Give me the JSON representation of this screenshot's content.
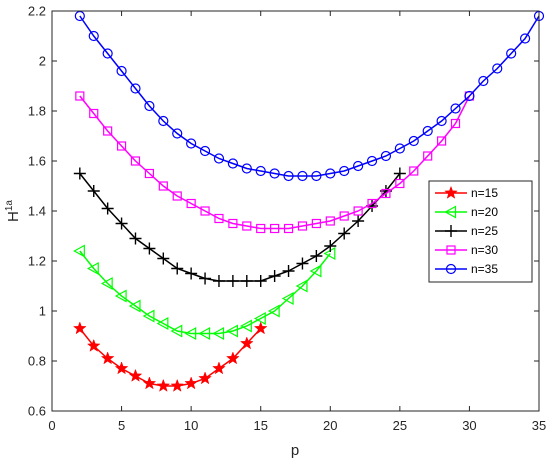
{
  "chart_data": {
    "type": "line",
    "xlabel": "p",
    "ylabel": "H",
    "ylabel_sup": "1a",
    "xlim": [
      0,
      35
    ],
    "ylim": [
      0.6,
      2.2
    ],
    "xticks": [
      0,
      5,
      10,
      15,
      20,
      25,
      30,
      35
    ],
    "yticks": [
      0.6,
      0.8,
      1,
      1.2,
      1.4,
      1.6,
      1.8,
      2,
      2.2
    ],
    "xtick_labels": [
      "0",
      "5",
      "10",
      "15",
      "20",
      "25",
      "30",
      "35"
    ],
    "ytick_labels": [
      "0.6",
      "0.8",
      "1",
      "1.2",
      "1.4",
      "1.6",
      "1.8",
      "2",
      "2.2"
    ],
    "grid": false,
    "legend_position": "right",
    "series": [
      {
        "name": "n=15",
        "color": "#ff0000",
        "marker": "star",
        "x": [
          2,
          3,
          4,
          5,
          6,
          7,
          8,
          9,
          10,
          11,
          12,
          13,
          14,
          15
        ],
        "y": [
          0.93,
          0.86,
          0.81,
          0.77,
          0.74,
          0.71,
          0.7,
          0.7,
          0.71,
          0.73,
          0.77,
          0.81,
          0.87,
          0.93
        ]
      },
      {
        "name": "n=20",
        "color": "#00ff00",
        "marker": "triangle-left",
        "x": [
          2,
          3,
          4,
          5,
          6,
          7,
          8,
          9,
          10,
          11,
          12,
          13,
          14,
          15,
          16,
          17,
          18,
          19,
          20
        ],
        "y": [
          1.24,
          1.17,
          1.11,
          1.06,
          1.02,
          0.98,
          0.95,
          0.92,
          0.91,
          0.91,
          0.91,
          0.92,
          0.94,
          0.97,
          1.0,
          1.05,
          1.1,
          1.16,
          1.23
        ]
      },
      {
        "name": "n=25",
        "color": "#000000",
        "marker": "plus",
        "x": [
          2,
          3,
          4,
          5,
          6,
          7,
          8,
          9,
          10,
          11,
          12,
          13,
          14,
          15,
          16,
          17,
          18,
          19,
          20,
          21,
          22,
          23,
          24,
          25
        ],
        "y": [
          1.55,
          1.48,
          1.41,
          1.35,
          1.29,
          1.25,
          1.21,
          1.17,
          1.15,
          1.13,
          1.12,
          1.12,
          1.12,
          1.12,
          1.14,
          1.16,
          1.19,
          1.22,
          1.26,
          1.31,
          1.36,
          1.42,
          1.48,
          1.55
        ]
      },
      {
        "name": "n=30",
        "color": "#ff00ff",
        "marker": "square",
        "x": [
          2,
          3,
          4,
          5,
          6,
          7,
          8,
          9,
          10,
          11,
          12,
          13,
          14,
          15,
          16,
          17,
          18,
          19,
          20,
          21,
          22,
          23,
          24,
          25,
          26,
          27,
          28,
          29,
          30
        ],
        "y": [
          1.86,
          1.79,
          1.72,
          1.66,
          1.6,
          1.55,
          1.5,
          1.46,
          1.43,
          1.4,
          1.37,
          1.35,
          1.34,
          1.33,
          1.33,
          1.33,
          1.34,
          1.35,
          1.36,
          1.38,
          1.4,
          1.43,
          1.47,
          1.51,
          1.56,
          1.62,
          1.68,
          1.75,
          1.86
        ]
      },
      {
        "name": "n=35",
        "color": "#0000ff",
        "marker": "circle",
        "x": [
          2,
          3,
          4,
          5,
          6,
          7,
          8,
          9,
          10,
          11,
          12,
          13,
          14,
          15,
          16,
          17,
          18,
          19,
          20,
          21,
          22,
          23,
          24,
          25,
          26,
          27,
          28,
          29,
          30,
          31,
          32,
          33,
          34,
          35
        ],
        "y": [
          2.18,
          2.1,
          2.03,
          1.96,
          1.89,
          1.82,
          1.76,
          1.71,
          1.67,
          1.64,
          1.61,
          1.59,
          1.57,
          1.56,
          1.55,
          1.54,
          1.54,
          1.54,
          1.55,
          1.56,
          1.58,
          1.6,
          1.62,
          1.65,
          1.68,
          1.72,
          1.76,
          1.81,
          1.86,
          1.92,
          1.97,
          2.03,
          2.09,
          2.18
        ]
      }
    ]
  }
}
